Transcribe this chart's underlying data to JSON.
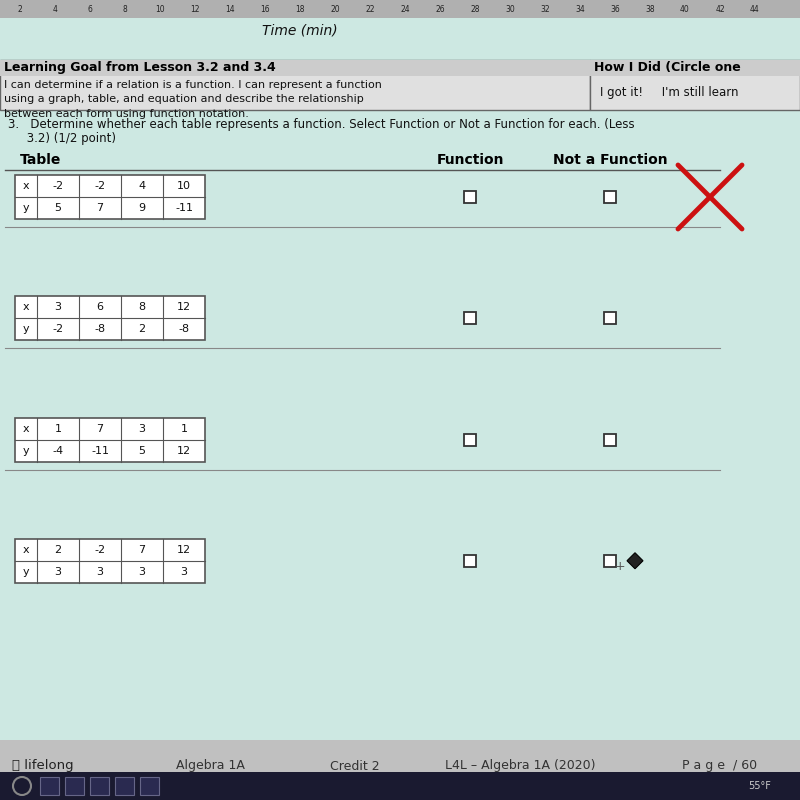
{
  "bg_color": "#cde8e2",
  "page_bg": "#cde8e2",
  "title_text_line1": "3.   Determine whether each table represents a function. Select Function or Not a Function for each. (Less",
  "title_text_line2": "     3.2) (1/2 point)",
  "col_header_table": "Table",
  "col_header_function": "Function",
  "col_header_not_function": "Not a Function",
  "top_ruler_text": "Time (min)",
  "learning_goal_title": "Learning Goal from Lesson 3.2 and 3.4",
  "learning_goal_text_line1": "I can determine if a relation is a function. I can represent a function",
  "learning_goal_text_line2": "using a graph, table, and equation and describe the relationship",
  "learning_goal_text_line3": "between each form using function notation.",
  "how_i_did_title": "How I Did (Circle one",
  "how_i_did_text": "I got it!     I'm still learn",
  "footer_left": "ⓘ lifelong",
  "footer_center1": "Algebra 1A",
  "footer_center2": "Credit 2",
  "footer_center3": "L4L – Algebra 1A (2020)",
  "footer_right": "P a g e  / 60",
  "footer_right2": "55°F",
  "tables": [
    {
      "x_vals": [
        "-2",
        "-2",
        "4",
        "10"
      ],
      "y_vals": [
        "5",
        "7",
        "9",
        "-11"
      ]
    },
    {
      "x_vals": [
        "3",
        "6",
        "8",
        "12"
      ],
      "y_vals": [
        "-2",
        "-8",
        "2",
        "-8"
      ]
    },
    {
      "x_vals": [
        "1",
        "7",
        "3",
        "1"
      ],
      "y_vals": [
        "-4",
        "-11",
        "5",
        "12"
      ]
    },
    {
      "x_vals": [
        "2",
        "-2",
        "7",
        "12"
      ],
      "y_vals": [
        "3",
        "3",
        "3",
        "3"
      ]
    }
  ],
  "x_mark_color": "#cc1111",
  "table_bg": "#ffffff",
  "table_border": "#555555",
  "text_color": "#111111",
  "checkbox_color": "#333333",
  "ruler_nums": [
    2,
    4,
    6,
    8,
    10,
    12,
    14,
    16,
    18,
    20,
    22,
    24,
    26,
    28,
    30,
    32,
    34,
    36,
    38,
    40,
    42,
    44
  ]
}
